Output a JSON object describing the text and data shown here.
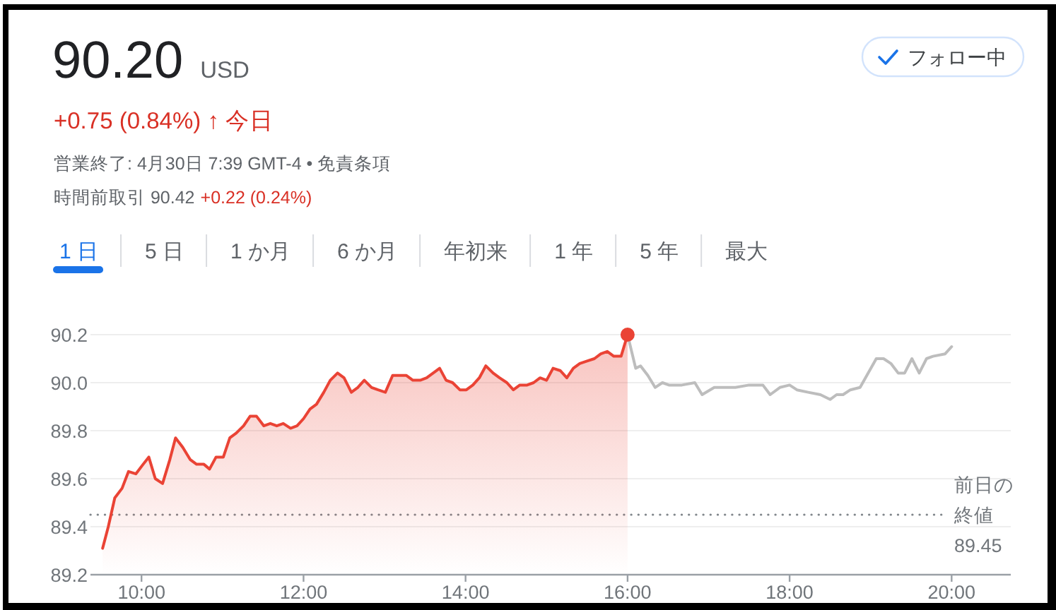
{
  "chart_data": {
    "type": "area",
    "title": "90.20 USD",
    "subtitle": "+0.75 (0.84%) ↑ 今日",
    "annotations": [
      "営業終了: 4月30日 7:39 GMT-4 • 免責条項",
      "時間前取引 90.42",
      "+0.22 (0.24%)",
      "1 日",
      "5 日",
      "1 か月",
      "6 か月",
      "年初来",
      "1 年",
      "5 年",
      "最大",
      "フォロー中"
    ],
    "xlim": [
      9.37,
      20.73
    ],
    "ylim": [
      89.2,
      90.2
    ],
    "xticks": [
      {
        "value": 10,
        "label": "10:00"
      },
      {
        "value": 12,
        "label": "12:00"
      },
      {
        "value": 14,
        "label": "14:00"
      },
      {
        "value": 16,
        "label": "16:00"
      },
      {
        "value": 18,
        "label": "18:00"
      },
      {
        "value": 20,
        "label": "20:00"
      }
    ],
    "yticks": [
      89.2,
      89.4,
      89.6,
      89.8,
      {
        "value": 90,
        "label": "90.0"
      },
      90.2
    ],
    "grid": "y",
    "ref_lines": [
      {
        "axis": "y",
        "value": 89.45,
        "label": "前日の終値89.45",
        "line_style": "dotted",
        "color": "#80868b"
      }
    ],
    "series": [
      {
        "color": "#ea4335",
        "x": [
          9.52,
          9.59,
          9.67,
          9.76,
          9.84,
          9.93,
          10.02,
          10.09,
          10.17,
          10.26,
          10.35,
          10.42,
          10.51,
          10.6,
          10.68,
          10.77,
          10.84,
          10.92,
          11.01,
          11.09,
          11.17,
          11.26,
          11.34,
          11.42,
          11.51,
          11.59,
          11.67,
          11.75,
          11.84,
          11.92,
          12.0,
          12.08,
          12.16,
          12.25,
          12.33,
          12.42,
          12.5,
          12.59,
          12.67,
          12.75,
          12.84,
          12.92,
          13.01,
          13.1,
          13.19,
          13.27,
          13.35,
          13.44,
          13.52,
          13.6,
          13.68,
          13.76,
          13.84,
          13.93,
          14.01,
          14.09,
          14.17,
          14.25,
          14.34,
          14.42,
          14.51,
          14.59,
          14.67,
          14.76,
          14.84,
          14.92,
          15.0,
          15.08,
          15.17,
          15.25,
          15.33,
          15.41,
          15.5,
          15.59,
          15.67,
          15.75,
          15.83,
          15.92,
          16.0
        ],
        "values": [
          89.31,
          89.4,
          89.52,
          89.56,
          89.63,
          89.62,
          89.66,
          89.69,
          89.6,
          89.58,
          89.68,
          89.77,
          89.73,
          89.68,
          89.66,
          89.66,
          89.64,
          89.69,
          89.69,
          89.77,
          89.79,
          89.82,
          89.86,
          89.86,
          89.82,
          89.83,
          89.82,
          89.83,
          89.81,
          89.82,
          89.85,
          89.89,
          89.91,
          89.96,
          90.01,
          90.04,
          90.02,
          89.96,
          89.98,
          90.01,
          89.98,
          89.97,
          89.96,
          90.03,
          90.03,
          90.03,
          90.01,
          90.01,
          90.02,
          90.04,
          90.06,
          90.01,
          90.0,
          89.97,
          89.97,
          89.99,
          90.02,
          90.07,
          90.04,
          90.02,
          90.0,
          89.97,
          89.99,
          89.99,
          90.0,
          90.02,
          90.01,
          90.06,
          90.05,
          90.02,
          90.06,
          90.08,
          90.09,
          90.1,
          90.12,
          90.13,
          90.11,
          90.11,
          90.2
        ]
      },
      {
        "type": "line",
        "color": "#bdbdbd",
        "x": [
          16.0,
          16.1,
          16.16,
          16.25,
          16.34,
          16.43,
          16.51,
          16.67,
          16.83,
          16.92,
          17.07,
          17.33,
          17.5,
          17.67,
          17.76,
          17.88,
          18.0,
          18.09,
          18.23,
          18.38,
          18.5,
          18.58,
          18.66,
          18.75,
          18.87,
          19.07,
          19.16,
          19.25,
          19.34,
          19.42,
          19.51,
          19.6,
          19.69,
          19.77,
          19.92,
          20.0
        ],
        "values": [
          90.2,
          90.06,
          90.07,
          90.03,
          89.98,
          90.0,
          89.99,
          89.99,
          90.0,
          89.95,
          89.98,
          89.98,
          89.99,
          89.99,
          89.95,
          89.98,
          89.99,
          89.97,
          89.96,
          89.95,
          89.93,
          89.95,
          89.95,
          89.97,
          89.98,
          90.1,
          90.1,
          90.08,
          90.04,
          90.04,
          90.1,
          90.04,
          90.1,
          90.11,
          90.12,
          90.15
        ]
      },
      {
        "type": "scatter",
        "color": "#ea4335",
        "marker": "circle",
        "x": [
          16.0
        ],
        "values": [
          90.2
        ]
      }
    ]
  }
}
